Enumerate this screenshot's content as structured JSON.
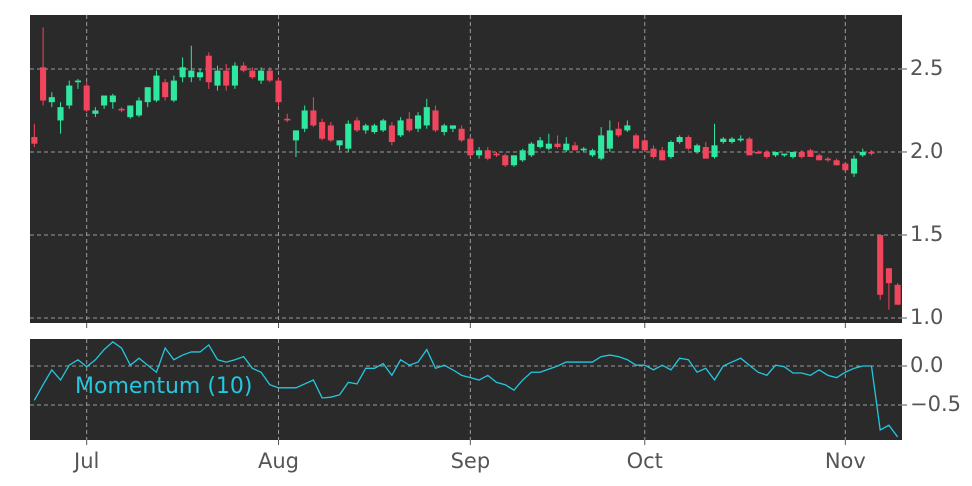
{
  "chart_data": [
    {
      "type": "candlestick",
      "up_color": "#2ee8a0",
      "down_color": "#f0455c",
      "background": "#2a2a2a",
      "grid": true,
      "ylim": [
        0.97,
        2.825
      ],
      "yticks": [
        {
          "value": 1.0,
          "label": "1.0"
        },
        {
          "value": 1.5,
          "label": "1.5"
        },
        {
          "value": 2.0,
          "label": "2.0"
        },
        {
          "value": 2.5,
          "label": "2.5"
        }
      ],
      "open": [
        2.09,
        2.51,
        2.3,
        2.19,
        2.28,
        2.42,
        2.4,
        2.23,
        2.28,
        2.3,
        2.26,
        2.21,
        2.22,
        2.3,
        2.31,
        2.42,
        2.31,
        2.45,
        2.45,
        2.45,
        2.58,
        2.4,
        2.49,
        2.4,
        2.52,
        2.49,
        2.43,
        2.49,
        2.43,
        2.2,
        2.07,
        2.14,
        2.25,
        2.18,
        2.16,
        2.04,
        2.02,
        2.19,
        2.13,
        2.12,
        2.13,
        2.16,
        2.1,
        2.2,
        2.14,
        2.16,
        2.25,
        2.12,
        2.14,
        2.14,
        2.08,
        1.98,
        2.01,
        1.99,
        1.98,
        1.92,
        1.95,
        1.98,
        2.03,
        2.02,
        2.05,
        2.01,
        2.04,
        2.01,
        1.98,
        1.96,
        2.02,
        2.14,
        2.13,
        2.1,
        2.07,
        2.02,
        2.01,
        1.97,
        2.06,
        2.09,
        2.0,
        2.03,
        1.97,
        2.06,
        2.06,
        2.07,
        2.08,
        2.0,
        2.0,
        1.98,
        1.98,
        1.97,
        2.0,
        2.01,
        1.98,
        1.96,
        1.95,
        1.93,
        1.87,
        1.98,
        2.0,
        1.5,
        1.3,
        1.2
      ],
      "high": [
        2.17,
        2.75,
        2.36,
        2.3,
        2.43,
        2.44,
        2.42,
        2.27,
        2.34,
        2.35,
        2.27,
        2.28,
        2.33,
        2.39,
        2.49,
        2.44,
        2.46,
        2.57,
        2.64,
        2.5,
        2.6,
        2.52,
        2.53,
        2.54,
        2.54,
        2.51,
        2.51,
        2.51,
        2.45,
        2.23,
        2.13,
        2.28,
        2.33,
        2.2,
        2.18,
        2.07,
        2.19,
        2.21,
        2.17,
        2.17,
        2.2,
        2.18,
        2.21,
        2.24,
        2.24,
        2.32,
        2.28,
        2.17,
        2.16,
        2.16,
        2.09,
        2.03,
        2.03,
        2.0,
        1.99,
        1.98,
        2.02,
        2.06,
        2.09,
        2.11,
        2.1,
        2.09,
        2.06,
        2.03,
        2.02,
        2.15,
        2.19,
        2.18,
        2.19,
        2.11,
        2.08,
        2.04,
        2.03,
        2.07,
        2.1,
        2.1,
        2.05,
        2.06,
        2.17,
        2.09,
        2.09,
        2.1,
        2.09,
        2.01,
        2.01,
        2.0,
        1.99,
        2.0,
        2.01,
        2.02,
        1.99,
        1.97,
        1.96,
        1.94,
        1.98,
        2.02,
        2.01,
        1.5,
        1.3,
        1.21
      ],
      "low": [
        2.03,
        2.28,
        2.27,
        2.11,
        2.26,
        2.38,
        2.24,
        2.21,
        2.26,
        2.26,
        2.24,
        2.2,
        2.21,
        2.27,
        2.3,
        2.31,
        2.3,
        2.42,
        2.42,
        2.43,
        2.38,
        2.37,
        2.37,
        2.38,
        2.48,
        2.44,
        2.41,
        2.42,
        2.28,
        2.18,
        1.97,
        2.12,
        2.15,
        2.07,
        2.06,
        2.01,
        2.0,
        2.12,
        2.11,
        2.11,
        2.12,
        2.04,
        2.09,
        2.12,
        2.12,
        2.14,
        2.12,
        2.1,
        2.12,
        2.06,
        1.97,
        1.96,
        1.95,
        1.97,
        1.91,
        1.91,
        1.94,
        1.97,
        2.02,
        2.01,
        2.02,
        2.0,
        2.01,
        2.0,
        1.97,
        1.95,
        2.0,
        2.09,
        2.12,
        2.02,
        2.0,
        1.96,
        1.95,
        1.96,
        2.05,
        2.01,
        1.99,
        1.96,
        1.96,
        2.05,
        2.05,
        2.06,
        1.98,
        1.99,
        1.96,
        1.97,
        1.97,
        1.96,
        1.96,
        1.97,
        1.95,
        1.94,
        1.92,
        1.89,
        1.85,
        1.97,
        1.98,
        1.11,
        1.05,
        1.08
      ],
      "close": [
        2.05,
        2.31,
        2.33,
        2.27,
        2.4,
        2.43,
        2.25,
        2.25,
        2.34,
        2.34,
        2.25,
        2.28,
        2.31,
        2.39,
        2.46,
        2.33,
        2.43,
        2.51,
        2.49,
        2.48,
        2.42,
        2.49,
        2.4,
        2.52,
        2.49,
        2.45,
        2.49,
        2.43,
        2.3,
        2.19,
        2.13,
        2.25,
        2.16,
        2.08,
        2.07,
        2.07,
        2.17,
        2.13,
        2.16,
        2.16,
        2.19,
        2.06,
        2.19,
        2.13,
        2.22,
        2.27,
        2.13,
        2.16,
        2.16,
        2.07,
        1.98,
        2.01,
        1.96,
        1.98,
        1.92,
        1.98,
        2.01,
        2.05,
        2.07,
        2.05,
        2.03,
        2.05,
        2.01,
        2.02,
        2.01,
        2.1,
        2.13,
        2.1,
        2.16,
        2.02,
        2.01,
        1.97,
        1.95,
        2.06,
        2.09,
        2.02,
        2.04,
        1.96,
        2.04,
        2.08,
        2.08,
        2.08,
        1.98,
        1.99,
        1.97,
        2.0,
        1.99,
        2.0,
        1.97,
        1.97,
        1.95,
        1.95,
        1.92,
        1.89,
        1.96,
        2.0,
        1.99,
        1.14,
        1.21,
        1.08
      ]
    },
    {
      "type": "line",
      "background": "#2a2a2a",
      "grid": true,
      "ylim": [
        -0.949,
        0.346
      ],
      "yticks": [
        {
          "value": -0.5,
          "label": "−0.5"
        },
        {
          "value": 0.0,
          "label": "0.0"
        }
      ],
      "categories": [
        null,
        null,
        null,
        null,
        null,
        null,
        "Jul",
        null,
        null,
        null,
        null,
        null,
        null,
        null,
        null,
        null,
        null,
        null,
        null,
        null,
        null,
        null,
        null,
        null,
        null,
        null,
        null,
        null,
        "Aug",
        null,
        null,
        null,
        null,
        null,
        null,
        null,
        null,
        null,
        null,
        null,
        null,
        null,
        null,
        null,
        null,
        null,
        null,
        null,
        null,
        null,
        "Sep",
        null,
        null,
        null,
        null,
        null,
        null,
        null,
        null,
        null,
        null,
        null,
        null,
        null,
        null,
        null,
        null,
        null,
        null,
        null,
        "Oct",
        null,
        null,
        null,
        null,
        null,
        null,
        null,
        null,
        null,
        null,
        null,
        null,
        null,
        null,
        null,
        null,
        null,
        null,
        null,
        null,
        null,
        null,
        "Nov",
        null,
        null,
        null,
        null,
        null,
        null
      ],
      "series": [
        {
          "name": "Momentum (10)",
          "color": "#22c8e0",
          "values": [
            -0.44,
            -0.24,
            -0.05,
            -0.18,
            0.01,
            0.08,
            -0.01,
            0.08,
            0.21,
            0.31,
            0.23,
            0.01,
            0.1,
            0.01,
            -0.08,
            0.23,
            0.08,
            0.14,
            0.18,
            0.18,
            0.27,
            0.08,
            0.05,
            0.08,
            0.12,
            -0.03,
            -0.08,
            -0.24,
            -0.28,
            -0.28,
            -0.28,
            -0.23,
            -0.18,
            -0.41,
            -0.4,
            -0.37,
            -0.21,
            -0.23,
            -0.03,
            -0.03,
            0.03,
            -0.12,
            0.08,
            0.01,
            0.05,
            0.21,
            -0.03,
            0.01,
            -0.05,
            -0.12,
            -0.15,
            -0.18,
            -0.12,
            -0.21,
            -0.24,
            -0.31,
            -0.18,
            -0.08,
            -0.08,
            -0.04,
            0.0,
            0.05,
            0.05,
            0.05,
            0.05,
            0.12,
            0.14,
            0.12,
            0.08,
            0.01,
            0.01,
            -0.05,
            0.01,
            -0.05,
            0.1,
            0.08,
            -0.08,
            -0.03,
            -0.18,
            0.0,
            0.05,
            0.1,
            0.01,
            -0.08,
            -0.12,
            0.01,
            -0.01,
            -0.09,
            -0.09,
            -0.12,
            -0.05,
            -0.12,
            -0.15,
            -0.08,
            -0.03,
            0.0,
            0.0,
            -0.82,
            -0.76,
            -0.91
          ]
        }
      ]
    }
  ]
}
